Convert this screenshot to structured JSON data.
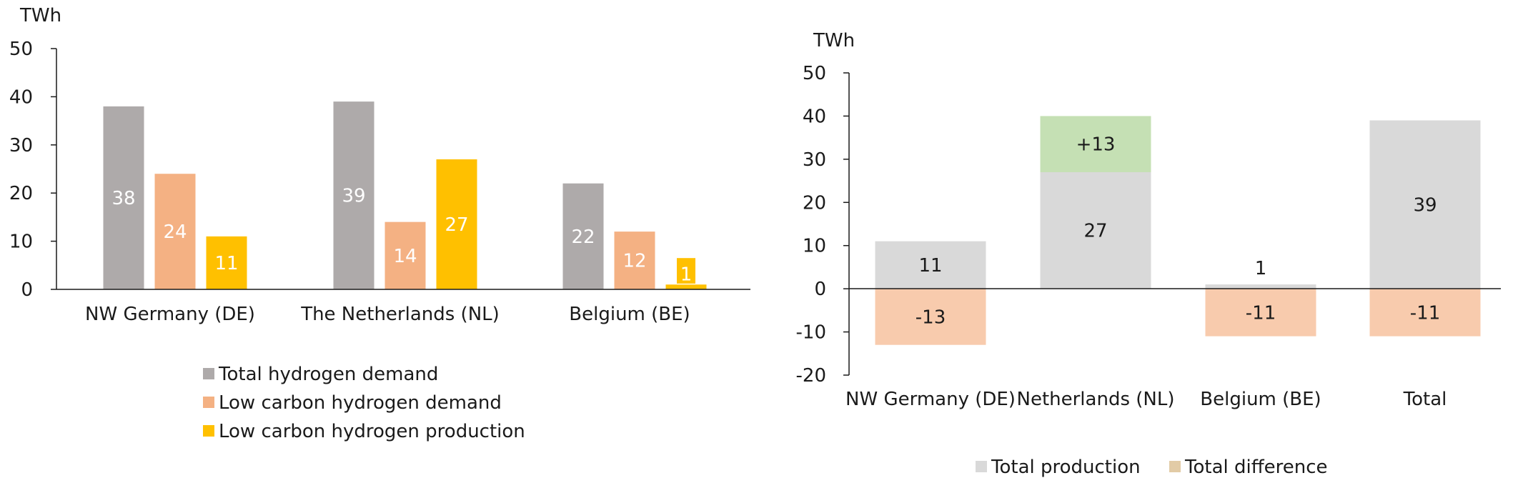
{
  "chart_data": [
    {
      "type": "bar",
      "ylabel": "TWh",
      "ylim": [
        0,
        50
      ],
      "yticks": [
        "0",
        "10",
        "20",
        "30",
        "40",
        "50"
      ],
      "categories": [
        "NW Germany (DE)",
        "The Netherlands (NL)",
        "Belgium (BE)"
      ],
      "series": [
        {
          "name": "Total hydrogen demand",
          "color": "#aeaaaa",
          "values": [
            38,
            39,
            22
          ],
          "labels": [
            "38",
            "39",
            "22"
          ]
        },
        {
          "name": "Low carbon hydrogen demand",
          "color": "#f4b183",
          "values": [
            24,
            14,
            12
          ],
          "labels": [
            "24",
            "14",
            "12"
          ]
        },
        {
          "name": "Low carbon hydrogen production",
          "color": "#ffc000",
          "values": [
            11,
            27,
            1
          ],
          "labels": [
            "11",
            "27",
            "1"
          ]
        }
      ],
      "legend": "bottom",
      "grid": false
    },
    {
      "type": "bar",
      "stacked": true,
      "ylabel": "TWh",
      "ylim": [
        -20,
        50
      ],
      "yticks": [
        "-20",
        "-10",
        "0",
        "10",
        "20",
        "30",
        "40",
        "50"
      ],
      "categories": [
        "NW Germany (DE)",
        "Netherlands (NL)",
        "Belgium (BE)",
        "Total"
      ],
      "series": [
        {
          "name": "Total production",
          "color": "#d9d9d9",
          "values": [
            11,
            27,
            1,
            39
          ],
          "labels": [
            "11",
            "27",
            "1",
            "39"
          ]
        },
        {
          "name": "Total difference",
          "color": "#f8cbad",
          "values": [
            -13,
            null,
            -11,
            -11
          ],
          "labels": [
            "-13",
            "",
            "-11",
            "-11"
          ]
        },
        {
          "name": "",
          "color": "#c5e0b4",
          "values": [
            null,
            13,
            null,
            null
          ],
          "labels": [
            "",
            "+13",
            "",
            ""
          ]
        }
      ],
      "legend_swatches": {
        "Total production": "#d9d9d9",
        "Total difference": "#e2cba6"
      },
      "legend": "bottom",
      "grid": false
    }
  ]
}
